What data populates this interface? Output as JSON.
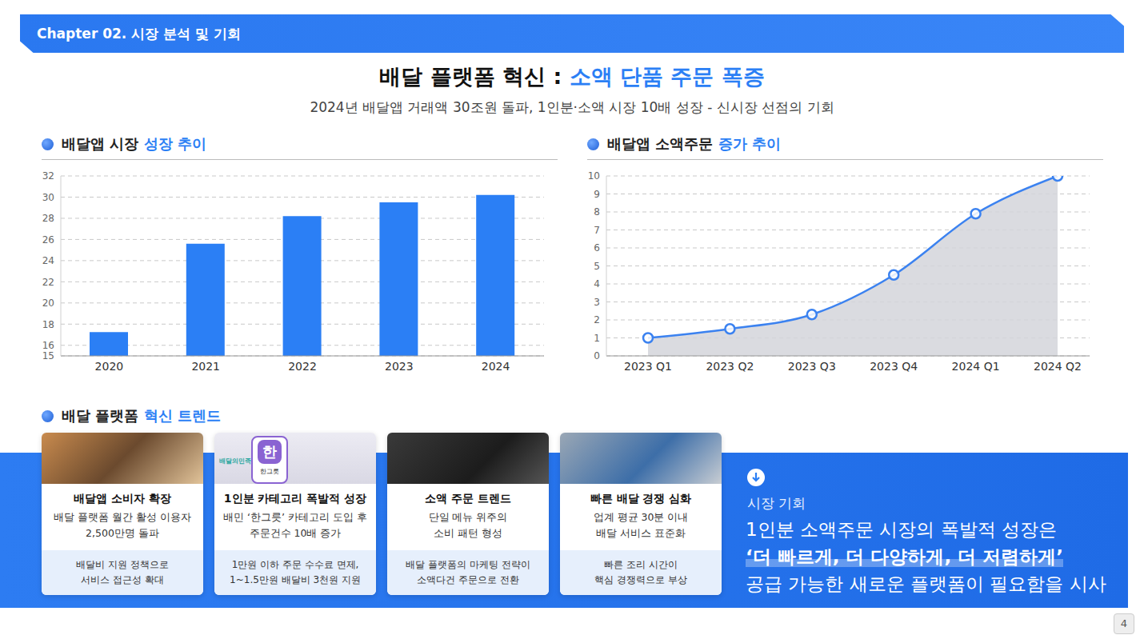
{
  "header": "Chapter 02. 시장 분석 및 기회",
  "title": {
    "text": "배달 플랫폼 혁신 : ",
    "highlight": "소액 단품 주문 폭증"
  },
  "subtitle": "2024년 배달앱 거래액 30조원 돌파, 1인분·소액 시장 10배 성장 - 신시장 선점의 기회",
  "chart_data": [
    {
      "section": {
        "text": "배달앱 시장 ",
        "highlight": "성장 추이"
      },
      "type": "bar",
      "categories": [
        "2020",
        "2021",
        "2022",
        "2023",
        "2024"
      ],
      "values": [
        17.25,
        25.6,
        28.2,
        29.5,
        30.2
      ],
      "color": "#2b7ff5",
      "ylim": [
        15,
        32
      ],
      "yticks": [
        15,
        16,
        18,
        20,
        22,
        24,
        26,
        28,
        30,
        32
      ],
      "grid": true
    },
    {
      "section": {
        "text": "배달앱 소액주문 ",
        "highlight": "증가 추이"
      },
      "type": "area",
      "categories": [
        "2023 Q1",
        "2023 Q2",
        "2023 Q3",
        "2023 Q4",
        "2024 Q1",
        "2024 Q2"
      ],
      "values": [
        1,
        1.5,
        2.3,
        4.5,
        7.9,
        10
      ],
      "color": "#3b82f0",
      "marker": "circle",
      "ylim": [
        0,
        10
      ],
      "yticks": [
        0,
        1,
        2,
        3,
        4,
        5,
        6,
        7,
        8,
        9,
        10
      ],
      "grid": true
    }
  ],
  "trends": {
    "section": {
      "text": "배달 플랫폼 ",
      "highlight": "혁신 트렌드"
    },
    "image_texts": [
      "배달의민족",
      "한",
      "한그릇"
    ],
    "cards": [
      {
        "title": "배달앱 소비자 확장",
        "desc": [
          "배달 플랫폼 월간 활성 이용자",
          "2,500만명 돌파"
        ],
        "note": [
          "배달비 지원 정책으로",
          "서비스 접근성 확대"
        ]
      },
      {
        "title": "1인분 카테고리 폭발적 성장",
        "desc": [
          "배민 ‘한그릇’ 카테고리 도입 후",
          "주문건수 10배 증가"
        ],
        "note": [
          "1만원 이하 주문 수수료 면제,",
          "1~1.5만원 배달비 3천원 지원"
        ]
      },
      {
        "title": "소액 주문 트렌드",
        "desc": [
          "단일 메뉴 위주의",
          "소비 패턴 형성"
        ],
        "note": [
          "배달 플랫폼의 마케팅 전략이",
          "소액다건 주문으로 전환"
        ]
      },
      {
        "title": "빠른 배달 경쟁 심화",
        "desc": [
          "업계 평균 30분 이내",
          "배달 서비스 표준화"
        ],
        "note": [
          "빠른 조리 시간이",
          "핵심 경쟁력으로 부상"
        ]
      }
    ]
  },
  "opportunity": {
    "label": "시장 기회",
    "lines": [
      "1인분 소액주문 시장의 폭발적 성장은"
    ],
    "highlight": "‘더 빠르게, 더 다양하게, 더 저렴하게’",
    "end": "공급 가능한 새로운 플랫폼이 필요함을 시사"
  },
  "page": 4
}
